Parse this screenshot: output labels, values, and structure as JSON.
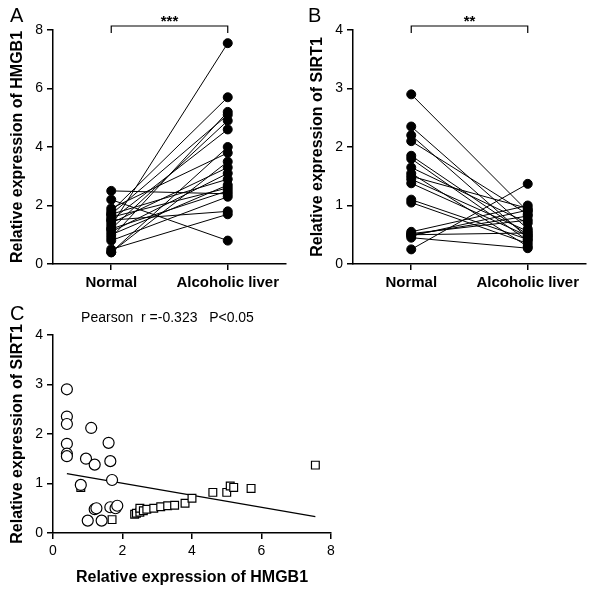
{
  "chart_data": [
    {
      "type": "paired_dot",
      "panel": "A",
      "categories": [
        "Normal",
        "Alcoholic liver"
      ],
      "values": [
        [
          2.5,
          2.4
        ],
        [
          2.2,
          0.8
        ],
        [
          1.9,
          3.8
        ],
        [
          1.8,
          5.7
        ],
        [
          1.7,
          2.9
        ],
        [
          1.7,
          5.1
        ],
        [
          1.6,
          2.6
        ],
        [
          1.5,
          4.6
        ],
        [
          1.5,
          1.8
        ],
        [
          1.4,
          3.3
        ],
        [
          1.3,
          7.55
        ],
        [
          1.2,
          2.5
        ],
        [
          1.2,
          4.9
        ],
        [
          1.1,
          3.1
        ],
        [
          1.0,
          2.7
        ],
        [
          0.9,
          5.2
        ],
        [
          0.8,
          2.3
        ],
        [
          0.5,
          1.7
        ],
        [
          0.4,
          4.0
        ],
        [
          0.4,
          3.5
        ]
      ],
      "color": "#000000",
      "y_label": "Relative expression of HMGB1",
      "ylim": [
        0,
        8
      ],
      "yticks": [
        0,
        2,
        4,
        6,
        8
      ],
      "significance": "***",
      "grid": false
    },
    {
      "type": "paired_dot",
      "panel": "B",
      "categories": [
        "Normal",
        "Alcoholic liver"
      ],
      "values": [
        [
          2.9,
          0.9
        ],
        [
          2.35,
          0.6
        ],
        [
          2.2,
          0.45
        ],
        [
          2.1,
          0.85
        ],
        [
          1.85,
          0.5
        ],
        [
          1.8,
          0.4
        ],
        [
          1.65,
          0.7
        ],
        [
          1.55,
          0.3
        ],
        [
          1.5,
          0.95
        ],
        [
          1.45,
          0.56
        ],
        [
          1.38,
          0.48
        ],
        [
          1.1,
          0.42
        ],
        [
          1.05,
          0.35
        ],
        [
          0.55,
          1.0
        ],
        [
          0.52,
          0.75
        ],
        [
          0.5,
          0.82
        ],
        [
          0.5,
          0.53
        ],
        [
          0.48,
          0.92
        ],
        [
          0.45,
          0.27
        ],
        [
          0.25,
          1.37
        ]
      ],
      "color": "#000000",
      "y_label": "Relative expression of SIRT1",
      "ylim": [
        0,
        4
      ],
      "yticks": [
        0,
        1,
        2,
        3,
        4
      ],
      "significance": "**",
      "grid": false
    },
    {
      "type": "scatter",
      "panel": "C",
      "title": "Pearson  r =-0.323   P<0.05",
      "x_label": "Relative expression of HMGB1",
      "y_label": "Relative expression of SIRT1",
      "xlim": [
        0,
        8
      ],
      "xticks": [
        0,
        2,
        4,
        6,
        8
      ],
      "ylim": [
        0,
        4
      ],
      "yticks": [
        0,
        1,
        2,
        3,
        4
      ],
      "series": [
        {
          "marker": "circle",
          "color": "#000000",
          "x": [
            0.4,
            0.4,
            0.4,
            0.4,
            0.4,
            0.4,
            0.8,
            1.0,
            0.95,
            1.1,
            1.2,
            1.2,
            1.25,
            1.4,
            1.6,
            1.65,
            1.65,
            1.7,
            1.8,
            1.85
          ],
          "values": [
            2.9,
            2.35,
            2.2,
            1.8,
            1.6,
            1.55,
            0.97,
            0.25,
            1.5,
            2.12,
            1.38,
            0.48,
            0.5,
            0.25,
            1.82,
            1.45,
            0.52,
            1.07,
            0.5,
            0.55
          ]
        },
        {
          "marker": "square",
          "color": "#000000",
          "x": [
            0.8,
            1.7,
            2.35,
            2.4,
            2.5,
            2.5,
            2.6,
            2.7,
            2.9,
            3.1,
            3.3,
            3.5,
            3.8,
            4.0,
            4.6,
            5.0,
            5.1,
            5.2,
            5.7,
            7.55
          ],
          "values": [
            0.92,
            0.27,
            0.38,
            0.4,
            0.42,
            0.5,
            0.45,
            0.48,
            0.5,
            0.53,
            0.55,
            0.56,
            0.6,
            0.7,
            0.82,
            0.82,
            0.95,
            0.92,
            0.9,
            1.37
          ]
        }
      ],
      "fit": {
        "x": [
          0.4,
          7.55
        ],
        "values": [
          1.2,
          0.33
        ]
      },
      "grid": false
    }
  ]
}
